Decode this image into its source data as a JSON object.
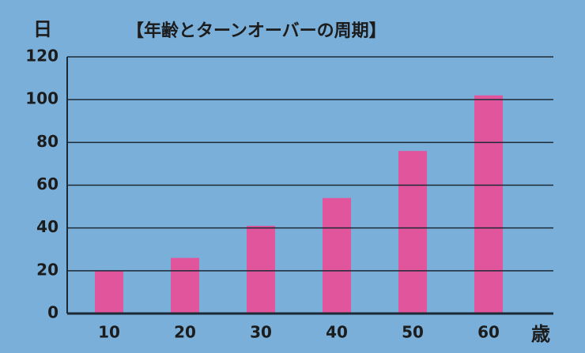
{
  "chart_data": {
    "type": "bar",
    "title": "【年齢とターンオーバーの周期】",
    "y_label": "日",
    "x_label": "歳",
    "categories": [
      "10",
      "20",
      "30",
      "40",
      "50",
      "60"
    ],
    "values": [
      20,
      26,
      41,
      54,
      76,
      102
    ],
    "color": "#e0559b",
    "ylim": [
      0,
      120
    ],
    "yticks": [
      0,
      20,
      40,
      60,
      80,
      100,
      120
    ],
    "grid": true
  }
}
